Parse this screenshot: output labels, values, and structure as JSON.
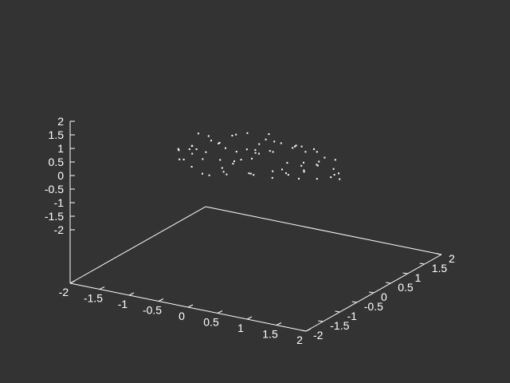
{
  "colors": {
    "background": "#333333",
    "foreground": "#ffffff",
    "points": "#ffffff"
  },
  "chart_data": {
    "type": "scatter3d",
    "title": "",
    "xlabel": "",
    "ylabel": "",
    "zlabel": "",
    "grid": false,
    "legend": "none",
    "xlim": [
      -2,
      2
    ],
    "ylim": [
      -2,
      2
    ],
    "zlim": [
      -2,
      2
    ],
    "x_ticks": [
      "-2",
      "-1.5",
      "-1",
      "-0.5",
      "0",
      "0.5",
      "1",
      "1.5",
      "2"
    ],
    "y_ticks": [
      "-2",
      "-1.5",
      "-1",
      "-0.5",
      "0",
      "0.5",
      "1",
      "1.5",
      "2"
    ],
    "z_ticks": [
      "2",
      "1.5",
      "1",
      "0.5",
      "0",
      "-0.5",
      "-1",
      "-1.5",
      "-2"
    ],
    "z_tick_values": [
      2,
      1.5,
      1,
      0.5,
      0,
      -0.5,
      -1,
      -1.5,
      -2
    ],
    "tick_values": [
      -2,
      -1.5,
      -1,
      -0.5,
      0,
      0.5,
      1,
      1.5,
      2
    ],
    "series": [
      {
        "points": [
          [
            -1.9,
            0.1,
            0.5
          ],
          [
            -1.8,
            -0.5,
            0.7
          ],
          [
            -1.7,
            0.6,
            0.4
          ],
          [
            -1.6,
            -0.2,
            1.0
          ],
          [
            -1.5,
            0.9,
            0.2
          ],
          [
            -1.4,
            -0.9,
            0.8
          ],
          [
            -1.3,
            0.3,
            1.2
          ],
          [
            -1.2,
            -1.4,
            0.3
          ],
          [
            -1.1,
            1.3,
            0.9
          ],
          [
            -1.0,
            -0.6,
            1.4
          ],
          [
            -0.9,
            0.0,
            0.6
          ],
          [
            -0.8,
            1.1,
            1.1
          ],
          [
            -0.7,
            -1.1,
            1.0
          ],
          [
            -0.6,
            0.5,
            1.5
          ],
          [
            -0.5,
            -0.3,
            0.4
          ],
          [
            -0.4,
            1.6,
            0.8
          ],
          [
            -0.3,
            -1.6,
            1.2
          ],
          [
            -0.2,
            0.8,
            1.7
          ],
          [
            -0.1,
            -0.8,
            0.9
          ],
          [
            0.0,
            0.2,
            1.3
          ],
          [
            0.1,
            1.4,
            1.0
          ],
          [
            0.2,
            -1.3,
            0.6
          ],
          [
            0.3,
            0.4,
            1.6
          ],
          [
            0.4,
            -0.5,
            1.1
          ],
          [
            0.5,
            1.0,
            0.7
          ],
          [
            0.6,
            -1.0,
            1.4
          ],
          [
            0.7,
            0.1,
            0.8
          ],
          [
            0.8,
            1.7,
            1.3
          ],
          [
            0.9,
            -1.7,
            0.9
          ],
          [
            1.0,
            0.6,
            1.2
          ],
          [
            1.1,
            -0.2,
            0.5
          ],
          [
            1.2,
            1.2,
            1.5
          ],
          [
            1.3,
            -1.2,
            1.1
          ],
          [
            1.4,
            0.3,
            0.9
          ],
          [
            1.5,
            -0.7,
            1.3
          ],
          [
            1.6,
            0.9,
            0.6
          ],
          [
            1.7,
            -0.4,
            1.0
          ],
          [
            1.8,
            0.2,
            0.7
          ],
          [
            1.9,
            -0.1,
            1.1
          ],
          [
            1.85,
            0.7,
            0.4
          ],
          [
            -1.85,
            -0.3,
            0.9
          ],
          [
            -1.55,
            1.2,
            1.3
          ],
          [
            -1.25,
            -0.9,
            1.6
          ],
          [
            -0.95,
            0.7,
            0.3
          ],
          [
            -0.65,
            -1.5,
            0.7
          ],
          [
            -0.35,
            1.0,
            0.5
          ],
          [
            -0.05,
            -1.0,
            1.8
          ],
          [
            0.25,
            1.8,
            1.4
          ],
          [
            0.55,
            -1.8,
            1.0
          ],
          [
            0.85,
            0.0,
            1.7
          ],
          [
            1.15,
            1.5,
            0.8
          ],
          [
            1.45,
            -1.5,
            0.6
          ],
          [
            1.75,
            1.1,
            1.0
          ],
          [
            -1.65,
            0.4,
            1.1
          ],
          [
            -1.35,
            -1.2,
            0.6
          ],
          [
            -1.05,
            1.6,
            0.7
          ],
          [
            -0.75,
            -0.1,
            1.3
          ],
          [
            -0.45,
            0.3,
            0.9
          ],
          [
            -0.15,
            -1.9,
            1.1
          ],
          [
            0.15,
            1.1,
            0.4
          ],
          [
            0.45,
            -0.9,
            1.9
          ],
          [
            0.75,
            1.3,
            0.6
          ],
          [
            1.05,
            -0.6,
            1.5
          ],
          [
            1.35,
            0.7,
            1.4
          ],
          [
            1.65,
            -1.1,
            0.9
          ],
          [
            -1.95,
            0.9,
            1.0
          ],
          [
            -1.45,
            1.5,
            0.5
          ],
          [
            -0.85,
            -1.7,
            1.0
          ],
          [
            -0.25,
            0.6,
            1.2
          ],
          [
            0.35,
            -1.6,
            0.8
          ],
          [
            0.95,
            0.9,
            0.9
          ],
          [
            1.55,
            1.6,
            1.2
          ],
          [
            1.25,
            -1.8,
            0.7
          ],
          [
            0.65,
            0.5,
            0.3
          ],
          [
            -0.55,
            1.8,
            1.0
          ]
        ]
      }
    ]
  }
}
